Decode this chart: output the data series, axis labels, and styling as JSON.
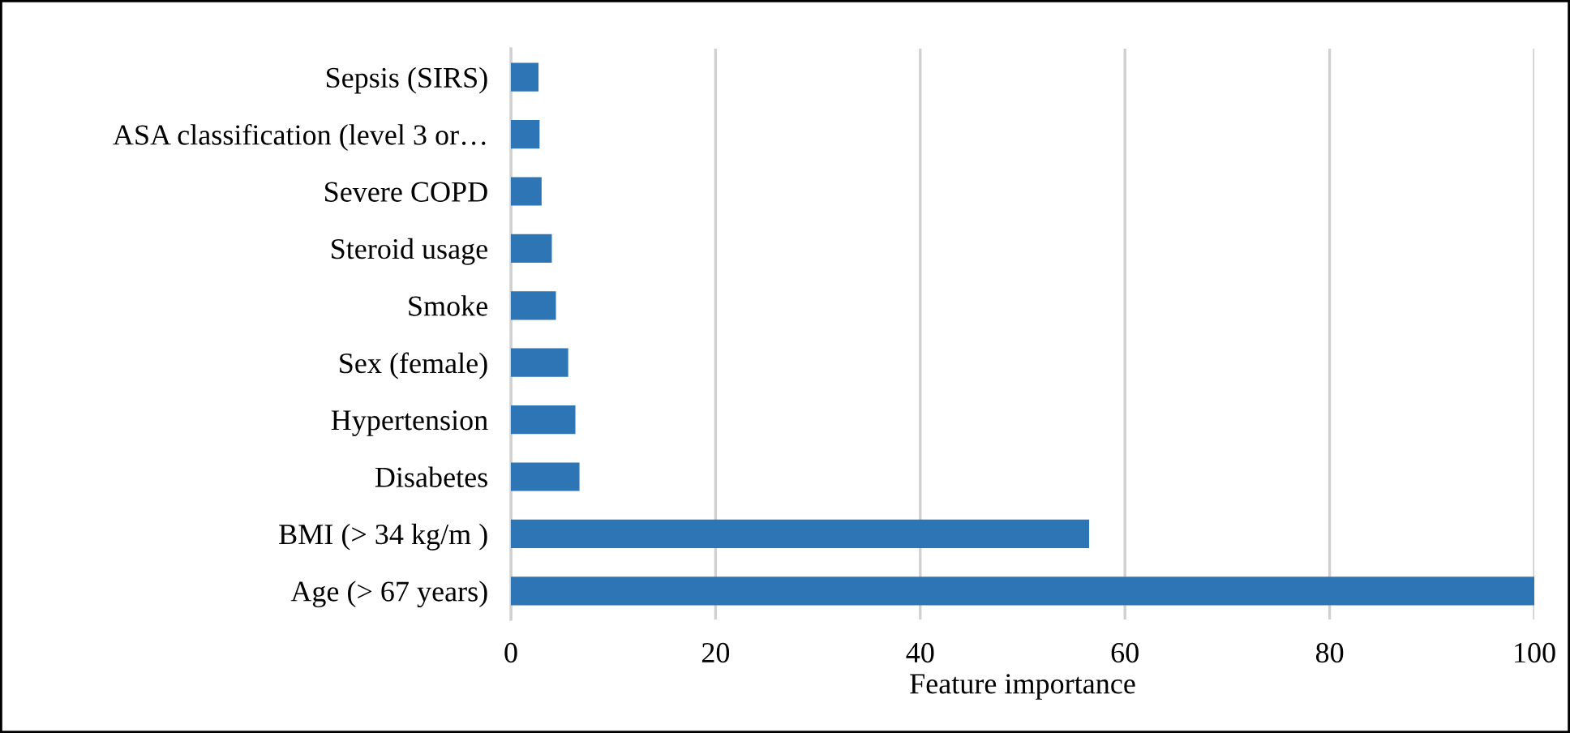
{
  "chart_data": {
    "type": "bar",
    "orientation": "horizontal",
    "xlabel": "Feature importance",
    "categories": [
      "Sepsis (SIRS)",
      "ASA classification (level 3 or…",
      "Severe COPD",
      "Steroid usage",
      "Smoke",
      "Sex (female)",
      "Hypertension",
      "Disabetes",
      "BMI (> 34 kg/m )",
      "Age (> 67 years)"
    ],
    "values": [
      2.7,
      2.8,
      3.0,
      4.0,
      4.4,
      5.6,
      6.3,
      6.7,
      56.5,
      100
    ],
    "color": "#2e75b6",
    "xlim": [
      0,
      100
    ],
    "xticks": [
      0,
      20,
      40,
      60,
      80,
      100
    ],
    "grid": "x"
  }
}
